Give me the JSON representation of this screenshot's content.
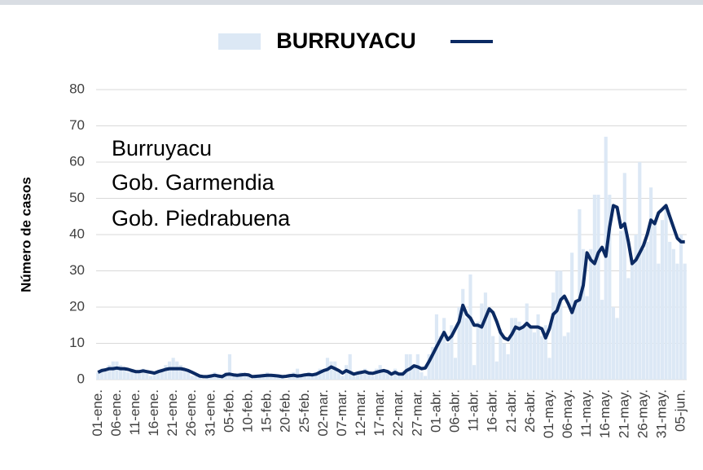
{
  "chart_data": {
    "type": "bar_line",
    "title": "BURRUYACU",
    "y_label": "Número de casos",
    "annotations": [
      "Burruyacu",
      "Gob. Garmendia",
      "Gob. Piedrabuena"
    ],
    "categories": [
      "01-ene.",
      null,
      null,
      null,
      null,
      "06-ene.",
      null,
      null,
      null,
      null,
      "11-ene.",
      null,
      null,
      null,
      null,
      "16-ene.",
      null,
      null,
      null,
      null,
      "21-ene.",
      null,
      null,
      null,
      null,
      "26-ene.",
      null,
      null,
      null,
      null,
      "31-ene.",
      null,
      null,
      null,
      null,
      "05-feb.",
      null,
      null,
      null,
      null,
      "10-feb.",
      null,
      null,
      null,
      null,
      "15-feb.",
      null,
      null,
      null,
      null,
      "20-feb.",
      null,
      null,
      null,
      null,
      "25-feb.",
      null,
      null,
      null,
      null,
      "02-mar.",
      null,
      null,
      null,
      null,
      "07-mar.",
      null,
      null,
      null,
      null,
      "12-mar.",
      null,
      null,
      null,
      null,
      "17-mar.",
      null,
      null,
      null,
      null,
      "22-mar.",
      null,
      null,
      null,
      null,
      "27-mar.",
      null,
      null,
      null,
      null,
      "01-abr.",
      null,
      null,
      null,
      null,
      "06-abr.",
      null,
      null,
      null,
      null,
      "11-abr.",
      null,
      null,
      null,
      null,
      "16-abr.",
      null,
      null,
      null,
      null,
      "21-abr.",
      null,
      null,
      null,
      null,
      "26-abr.",
      null,
      null,
      null,
      null,
      "01-may.",
      null,
      null,
      null,
      null,
      "06-may.",
      null,
      null,
      null,
      null,
      "11-may.",
      null,
      null,
      null,
      null,
      "16-may.",
      null,
      null,
      null,
      null,
      "21-may.",
      null,
      null,
      null,
      null,
      "26-may.",
      null,
      null,
      null,
      null,
      "31-may.",
      null,
      null,
      null,
      null,
      "05-jun.",
      null
    ],
    "series": [
      {
        "kind": "bar",
        "color": "#dce8f5",
        "values": [
          2,
          3,
          3,
          4,
          5,
          5,
          4,
          3,
          2,
          3,
          2,
          2,
          3,
          2,
          1,
          2,
          2,
          3,
          4,
          5,
          6,
          5,
          4,
          3,
          2,
          1,
          1,
          1,
          0,
          1,
          1,
          2,
          1,
          1,
          2,
          7,
          1,
          1,
          2,
          1,
          1,
          0,
          1,
          1,
          1,
          2,
          1,
          1,
          1,
          1,
          0,
          1,
          2,
          3,
          1,
          1,
          2,
          1,
          2,
          3,
          2,
          6,
          5,
          5,
          2,
          1,
          4,
          7,
          1,
          2,
          2,
          3,
          2,
          1,
          3,
          4,
          2,
          2,
          1,
          3,
          1,
          2,
          7,
          7,
          4,
          7,
          2,
          1,
          7,
          9,
          18,
          12,
          17,
          10,
          15,
          6,
          20,
          25,
          17,
          29,
          4,
          16,
          21,
          24,
          20,
          12,
          5,
          14,
          10,
          7,
          17,
          17,
          16,
          15,
          21,
          15,
          13,
          18,
          12,
          15,
          6,
          24,
          30,
          30,
          12,
          13,
          35,
          22,
          47,
          36,
          23,
          36,
          51,
          51,
          22,
          67,
          51,
          20,
          17,
          41,
          57,
          28,
          33,
          40,
          60,
          36,
          38,
          53,
          44,
          32,
          44,
          47,
          38,
          36,
          32,
          40,
          32
        ]
      },
      {
        "kind": "line",
        "color": "#0b2a63",
        "values": [
          2,
          2.5,
          2.7,
          3,
          3,
          3.2,
          3,
          3,
          2.8,
          2.5,
          2.2,
          2.2,
          2.4,
          2.2,
          2,
          1.8,
          2.2,
          2.5,
          2.8,
          3,
          3,
          3,
          3,
          2.8,
          2.5,
          2,
          1.5,
          1,
          0.8,
          0.8,
          1,
          1.2,
          1,
          0.8,
          1.4,
          1.5,
          1.3,
          1.2,
          1.3,
          1.4,
          1.3,
          0.8,
          0.9,
          1,
          1.1,
          1.2,
          1.2,
          1.1,
          1,
          0.8,
          0.9,
          1.1,
          1.2,
          1,
          1.1,
          1.3,
          1.4,
          1.3,
          1.5,
          2,
          2.5,
          2.8,
          3.5,
          3,
          2.5,
          1.8,
          2.5,
          2,
          1.5,
          1.8,
          2,
          2.2,
          1.8,
          1.7,
          2,
          2.3,
          2.5,
          2.2,
          1.5,
          2,
          1.5,
          1.5,
          2.5,
          3,
          3.8,
          3.5,
          3,
          3.2,
          5,
          7,
          9,
          11,
          13,
          11,
          12,
          14,
          16,
          20.5,
          18,
          17,
          15,
          15,
          14.5,
          17,
          19.5,
          18.5,
          16,
          13,
          11.5,
          11,
          12.5,
          14.5,
          14,
          14.5,
          15.5,
          14.5,
          14.5,
          14.5,
          14,
          11.5,
          14,
          18,
          19,
          22,
          23,
          21,
          18.5,
          21.5,
          22,
          26,
          35,
          33,
          32,
          35,
          36.5,
          34,
          42,
          48,
          47.5,
          42,
          43,
          38,
          32,
          33,
          35,
          37,
          40,
          44,
          43,
          46,
          47,
          48,
          45,
          42,
          39,
          38,
          38
        ]
      }
    ],
    "ylim": [
      0,
      80
    ],
    "yticks": [
      0,
      10,
      20,
      30,
      40,
      50,
      60,
      70,
      80
    ],
    "grid": true
  }
}
